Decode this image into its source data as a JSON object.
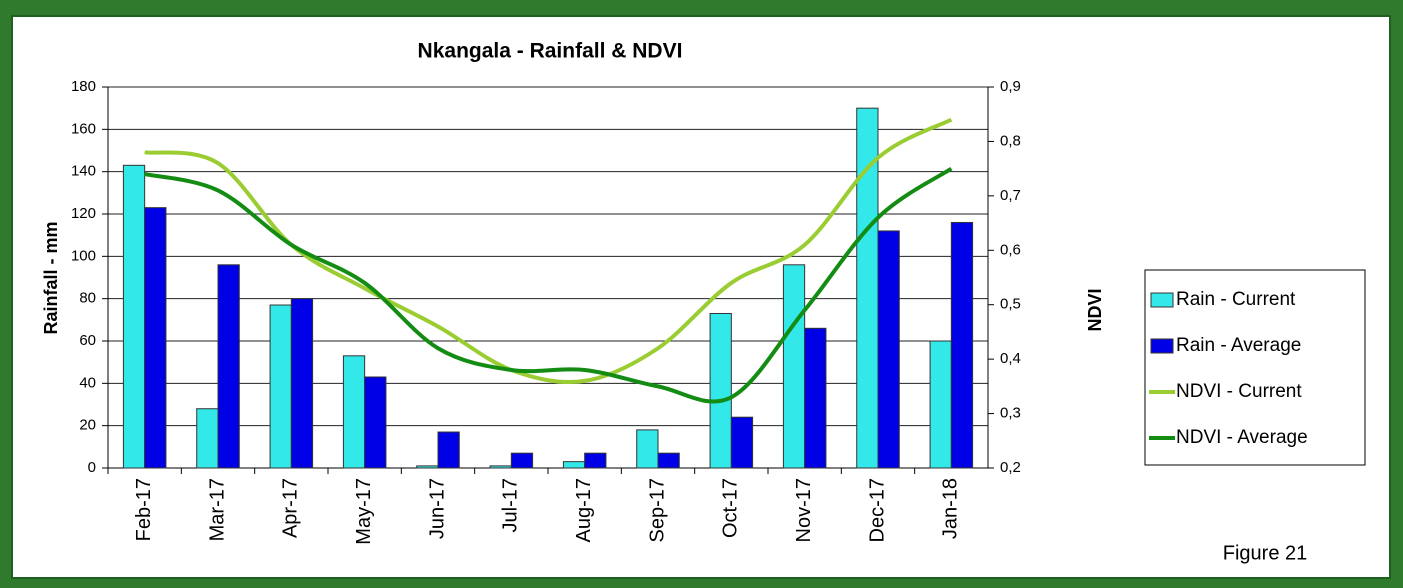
{
  "chart_data": {
    "type": "bar-line",
    "title": "Nkangala - Rainfall & NDVI",
    "ylabel": "Rainfall - mm",
    "y2label": "NDVI",
    "caption": "Figure 21",
    "categories": [
      "Feb-17",
      "Mar-17",
      "Apr-17",
      "May-17",
      "Jun-17",
      "Jul-17",
      "Aug-17",
      "Sep-17",
      "Oct-17",
      "Nov-17",
      "Dec-17",
      "Jan-18"
    ],
    "series": [
      {
        "name": "Rain - Current",
        "type": "bar",
        "color": "#33e8e8",
        "values": [
          143,
          28,
          77,
          53,
          1,
          1,
          3,
          18,
          73,
          96,
          170,
          60
        ]
      },
      {
        "name": "Rain - Average",
        "type": "bar",
        "color": "#0000e6",
        "values": [
          123,
          96,
          80,
          43,
          17,
          7,
          7,
          7,
          24,
          66,
          112,
          116
        ]
      },
      {
        "name": "NDVI - Current",
        "type": "line",
        "axis": "y2",
        "color": "#9acd32",
        "values": [
          0.78,
          0.76,
          0.61,
          0.53,
          0.46,
          0.38,
          0.36,
          0.42,
          0.54,
          0.61,
          0.77,
          0.84
        ]
      },
      {
        "name": "NDVI - Average",
        "type": "line",
        "axis": "y2",
        "color": "#148c14",
        "values": [
          0.74,
          0.71,
          0.61,
          0.54,
          0.42,
          0.38,
          0.38,
          0.35,
          0.33,
          0.49,
          0.66,
          0.75
        ]
      }
    ],
    "ylim": [
      0,
      180
    ],
    "yticks": [
      0,
      20,
      40,
      60,
      80,
      100,
      120,
      140,
      160,
      180
    ],
    "y2lim": [
      0.2,
      0.9
    ],
    "y2ticks": [
      {
        "value": 0.2,
        "label": "0,2"
      },
      {
        "value": 0.3,
        "label": "0,3"
      },
      {
        "value": 0.4,
        "label": "0,4"
      },
      {
        "value": 0.5,
        "label": "0,5"
      },
      {
        "value": 0.6,
        "label": "0,6"
      },
      {
        "value": 0.7,
        "label": "0,7"
      },
      {
        "value": 0.8,
        "label": "0,8"
      },
      {
        "value": 0.9,
        "label": "0,9"
      }
    ],
    "grid": true,
    "legend": "right"
  }
}
